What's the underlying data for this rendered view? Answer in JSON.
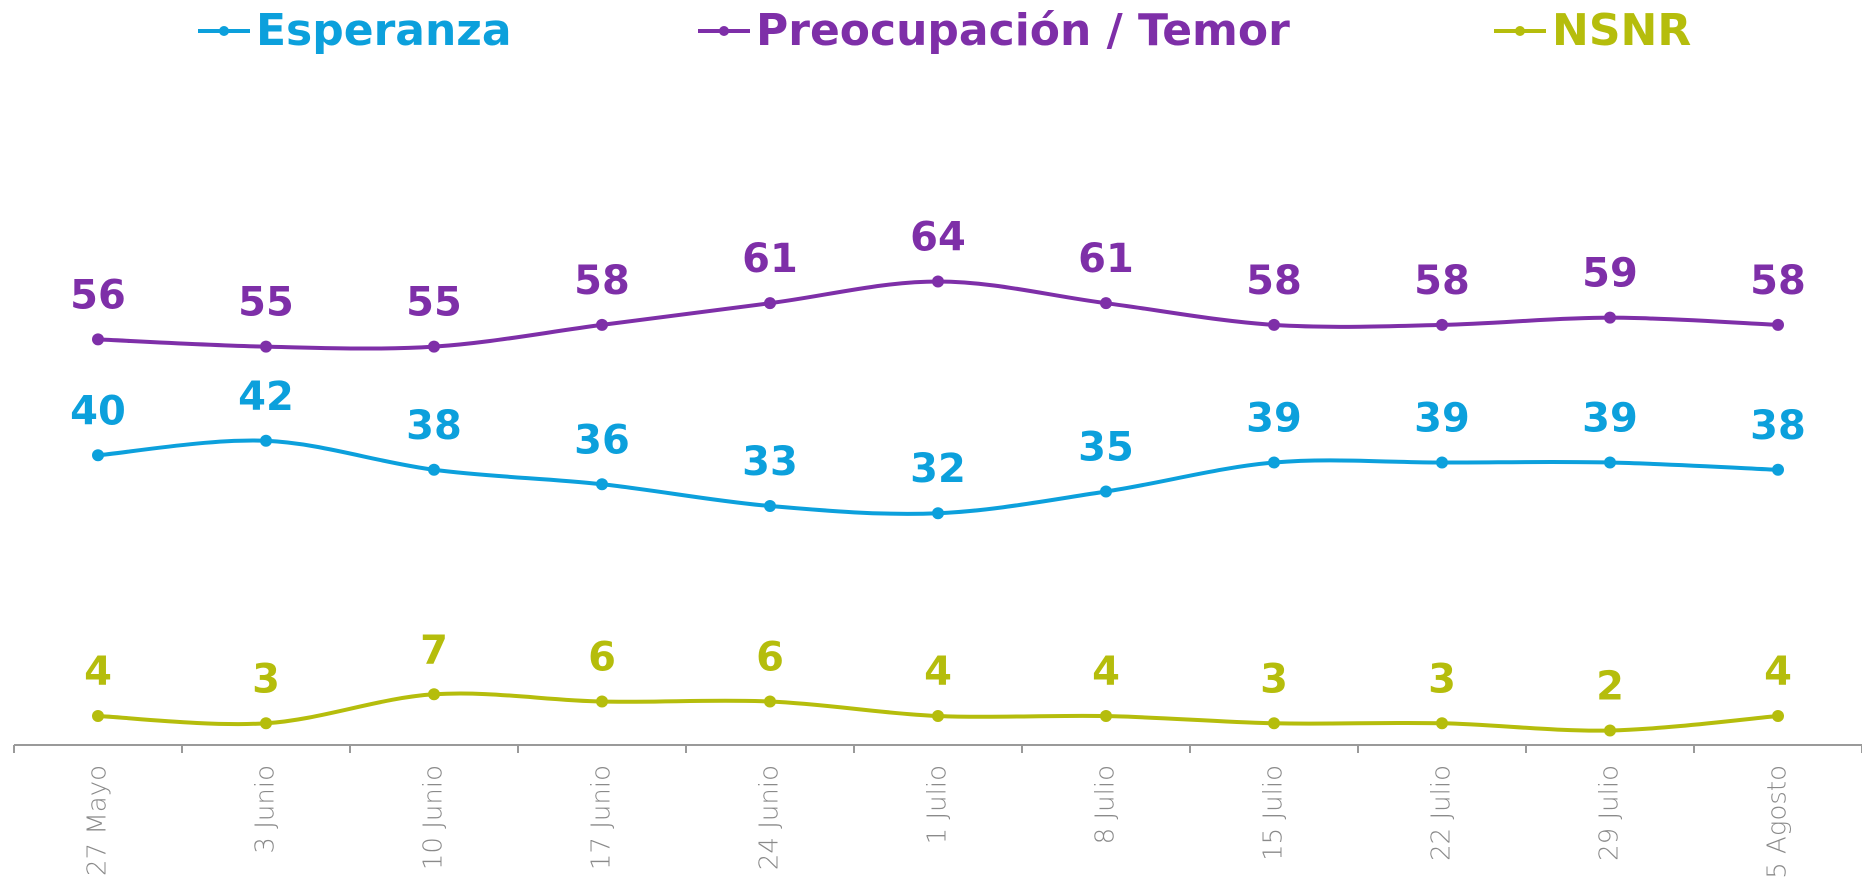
{
  "chart_data": {
    "type": "line",
    "categories": [
      "27 Mayo",
      "3 Junio",
      "10 Junio",
      "17 Junio",
      "24 Junio",
      "1 Julio",
      "8 Julio",
      "15 Julio",
      "22 Julio",
      "29 Julio",
      "5 Agosto"
    ],
    "series": [
      {
        "name": "Esperanza",
        "color": "#0ca0dc",
        "values": [
          40,
          42,
          38,
          36,
          33,
          32,
          35,
          39,
          39,
          39,
          38
        ]
      },
      {
        "name": "Preocupación / Temor",
        "color": "#7e2fa8",
        "values": [
          56,
          55,
          55,
          58,
          61,
          64,
          61,
          58,
          58,
          59,
          58
        ]
      },
      {
        "name": "NSNR",
        "color": "#b5bd0c",
        "values": [
          4,
          3,
          7,
          6,
          6,
          4,
          4,
          3,
          3,
          2,
          4
        ]
      }
    ],
    "ylim": [
      0,
      70
    ],
    "legend": "top",
    "grid": false,
    "smooth": true
  }
}
